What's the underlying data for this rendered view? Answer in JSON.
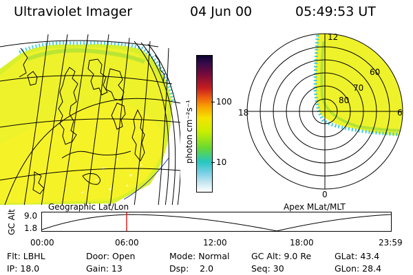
{
  "header": {
    "instrument": "Ultraviolet Imager",
    "date": "04 Jun 00",
    "time": "05:49:53 UT"
  },
  "left_panel": {
    "caption": "Geographic Lat/Lon"
  },
  "right_panel": {
    "caption": "Apex MLat/MLT",
    "mlt_labels": [
      "12",
      "18",
      "6",
      "0"
    ],
    "mlat_labels": [
      "60",
      "70",
      "80"
    ]
  },
  "colorbar": {
    "label": "photon cm⁻²s⁻¹",
    "ticks": [
      "100",
      "10"
    ],
    "colors": [
      "#0b0530",
      "#3a0a4a",
      "#7a0a3c",
      "#c81e1e",
      "#ee6010",
      "#f8a800",
      "#f5e400",
      "#c8ee00",
      "#66d834",
      "#26c7c0",
      "#78cfe6",
      "#c4e6f0",
      "#ffffff"
    ]
  },
  "altitude_plot": {
    "axis_label": "GC Alt",
    "y_ticks": [
      "9.0",
      "1.8"
    ],
    "x_ticks": [
      "00:00",
      "06:00",
      "12:00",
      "18:00",
      "23:59"
    ],
    "marker_color": "#e02020"
  },
  "footer": {
    "row1": [
      "Flt: LBHL",
      "Door: Open",
      "Mode: Normal",
      "GC Alt: 9.0 Re",
      "GLat: 43.4"
    ],
    "row2": [
      "IP: 18.0",
      "Gain: 13",
      "Dsp:    2.0",
      "Seq: 30",
      "GLon: 28.4"
    ]
  }
}
